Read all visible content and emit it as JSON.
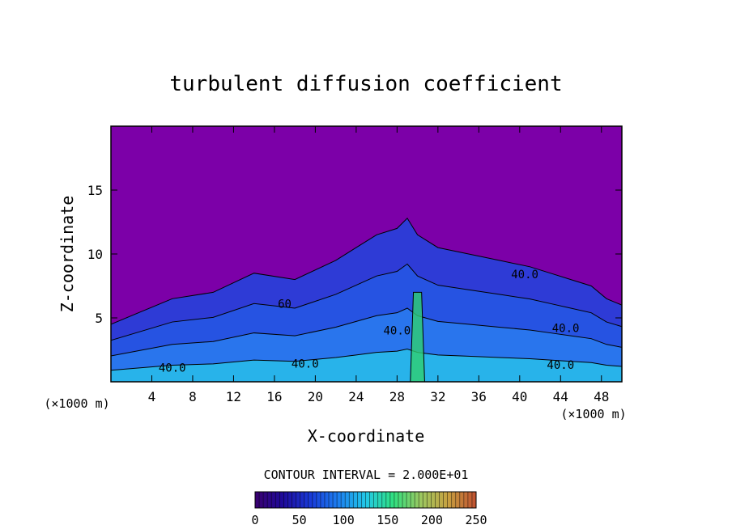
{
  "chart_data": {
    "type": "heatmap",
    "title": "turbulent diffusion coefficient",
    "xlabel": "X-coordinate",
    "ylabel": "Z-coordinate",
    "x_unit_left": "(×1000 m)",
    "x_unit_right": "(×1000 m)",
    "xlim": [
      0,
      50
    ],
    "ylim": [
      0,
      20
    ],
    "x_ticks": [
      4,
      8,
      12,
      16,
      20,
      24,
      28,
      32,
      36,
      40,
      44,
      48
    ],
    "y_ticks": [
      5,
      10,
      15
    ],
    "contour_interval_text": "CONTOUR INTERVAL = 2.000E+01",
    "contour_labels": [
      {
        "x": 40.5,
        "z": 8.1,
        "text": "40.0"
      },
      {
        "x": 28.0,
        "z": 3.7,
        "text": "40.0"
      },
      {
        "x": 44.5,
        "z": 3.9,
        "text": "40.0"
      },
      {
        "x": 44.0,
        "z": 1.0,
        "text": "40.0"
      },
      {
        "x": 17.0,
        "z": 5.8,
        "text": "60"
      },
      {
        "x": 19.0,
        "z": 1.1,
        "text": "40.0"
      },
      {
        "x": 6.0,
        "z": 0.8,
        "text": "40.0"
      }
    ],
    "cloud_top_profile": [
      [
        0,
        4.5
      ],
      [
        3,
        5.5
      ],
      [
        6,
        6.5
      ],
      [
        10,
        7.0
      ],
      [
        14,
        8.5
      ],
      [
        18,
        8.0
      ],
      [
        22,
        9.5
      ],
      [
        24,
        10.5
      ],
      [
        26,
        11.5
      ],
      [
        28,
        12.0
      ],
      [
        29,
        12.8
      ],
      [
        30,
        11.5
      ],
      [
        32,
        10.5
      ],
      [
        35,
        10.0
      ],
      [
        38,
        9.5
      ],
      [
        41,
        9.0
      ],
      [
        43,
        8.5
      ],
      [
        45,
        8.0
      ],
      [
        47,
        7.5
      ],
      [
        48.5,
        6.5
      ],
      [
        50,
        6.0
      ]
    ],
    "background_value": 0,
    "colorbar": {
      "min": 0,
      "max": 250,
      "tick_labels": [
        "0",
        "50",
        "100",
        "150",
        "200",
        "250"
      ],
      "colors": [
        "#3a0070",
        "#1e0a9a",
        "#1a3ad8",
        "#1c7ef0",
        "#22c8e8",
        "#30e080",
        "#9cc860",
        "#c8a040",
        "#c05030"
      ]
    },
    "colors": {
      "background_purple": "#7c00a8",
      "low_blue": "#2a3ed8",
      "mid_blue": "#2a7ef0",
      "cyan": "#28c8e8",
      "green": "#30d070"
    }
  }
}
